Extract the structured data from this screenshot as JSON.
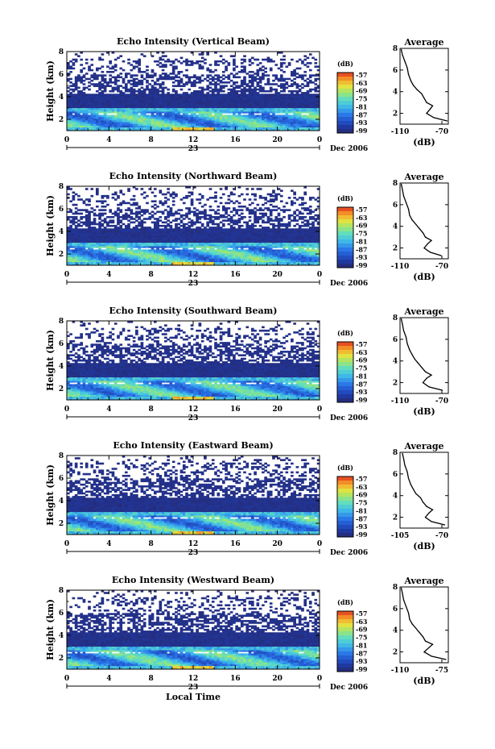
{
  "chart_data": [
    {
      "type": "heatmap",
      "title": "Echo Intensity (Vertical Beam)",
      "ylabel": "Height (km)",
      "x_ticks": [
        "0",
        "4",
        "8",
        "12",
        "16",
        "20",
        "0"
      ],
      "y_ticks": [
        "2",
        "4",
        "6",
        "8"
      ],
      "xlim": [
        0,
        24
      ],
      "ylim": [
        1,
        8
      ],
      "date_label": "23",
      "date_suffix": "Dec 2006",
      "colorbar": {
        "label": "(dB)",
        "ticks": [
          "-57",
          "-63",
          "-69",
          "-75",
          "-81",
          "-87",
          "-93",
          "-99"
        ]
      },
      "profile": {
        "title": "Average",
        "xlabel": "(dB)",
        "x_ticks": [
          "-110",
          "-70"
        ],
        "xlim": [
          -110,
          -70
        ],
        "y_ticks": [
          "2",
          "4",
          "6",
          "8"
        ],
        "ylim": [
          1,
          8
        ],
        "heights": [
          1.3,
          1.6,
          2.0,
          2.4,
          2.7,
          3.0,
          3.4,
          3.8,
          4.2,
          4.6,
          5.0,
          5.6,
          6.2,
          6.8,
          7.4,
          7.9
        ],
        "values": [
          -71,
          -82,
          -88,
          -85,
          -83,
          -88,
          -90,
          -92,
          -96,
          -99,
          -101,
          -103,
          -104,
          -106,
          -108,
          -109
        ]
      }
    },
    {
      "type": "heatmap",
      "title": "Echo Intensity (Northward Beam)",
      "ylabel": "Height (km)",
      "x_ticks": [
        "0",
        "4",
        "8",
        "12",
        "16",
        "20",
        "0"
      ],
      "y_ticks": [
        "2",
        "4",
        "6",
        "8"
      ],
      "xlim": [
        0,
        24
      ],
      "ylim": [
        1,
        8
      ],
      "date_label": "23",
      "date_suffix": "Dec 2006",
      "colorbar": {
        "label": "(dB)",
        "ticks": [
          "-57",
          "-63",
          "-69",
          "-75",
          "-81",
          "-87",
          "-93",
          "-99"
        ]
      },
      "profile": {
        "title": "Average",
        "xlabel": "(dB)",
        "x_ticks": [
          "-110",
          "-70"
        ],
        "xlim": [
          -110,
          -70
        ],
        "y_ticks": [
          "2",
          "4",
          "6",
          "8"
        ],
        "ylim": [
          1,
          8
        ],
        "heights": [
          1.3,
          1.6,
          2.0,
          2.4,
          2.7,
          3.0,
          3.4,
          3.8,
          4.2,
          4.6,
          5.0,
          5.6,
          6.2,
          6.8,
          7.4,
          7.9
        ],
        "values": [
          -76,
          -85,
          -90,
          -87,
          -84,
          -89,
          -91,
          -94,
          -97,
          -100,
          -102,
          -103,
          -105,
          -107,
          -108,
          -109
        ]
      }
    },
    {
      "type": "heatmap",
      "title": "Echo Intensity (Southward Beam)",
      "ylabel": "Height (km)",
      "x_ticks": [
        "0",
        "4",
        "8",
        "12",
        "16",
        "20",
        "0"
      ],
      "y_ticks": [
        "2",
        "4",
        "6",
        "8"
      ],
      "xlim": [
        0,
        24
      ],
      "ylim": [
        1,
        8
      ],
      "date_label": "23",
      "date_suffix": "Dec 2006",
      "colorbar": {
        "label": "(dB)",
        "ticks": [
          "-57",
          "-63",
          "-69",
          "-75",
          "-81",
          "-87",
          "-93",
          "-99"
        ]
      },
      "profile": {
        "title": "Average",
        "xlabel": "(dB)",
        "x_ticks": [
          "-110",
          "-70"
        ],
        "xlim": [
          -110,
          -70
        ],
        "y_ticks": [
          "2",
          "4",
          "6",
          "8"
        ],
        "ylim": [
          1,
          8
        ],
        "heights": [
          1.3,
          1.6,
          2.0,
          2.4,
          2.7,
          3.0,
          3.4,
          3.8,
          4.2,
          4.6,
          5.0,
          5.6,
          6.2,
          6.8,
          7.4,
          7.9
        ],
        "values": [
          -75,
          -86,
          -91,
          -88,
          -84,
          -89,
          -92,
          -95,
          -98,
          -100,
          -102,
          -104,
          -105,
          -107,
          -108,
          -109
        ]
      }
    },
    {
      "type": "heatmap",
      "title": "Echo Intensity (Eastward Beam)",
      "ylabel": "Height (km)",
      "x_ticks": [
        "0",
        "4",
        "8",
        "12",
        "16",
        "20",
        "0"
      ],
      "y_ticks": [
        "2",
        "4",
        "6",
        "8"
      ],
      "xlim": [
        0,
        24
      ],
      "ylim": [
        1,
        8
      ],
      "date_label": "23",
      "date_suffix": "Dec 2006",
      "colorbar": {
        "label": "(dB)",
        "ticks": [
          "-57",
          "-63",
          "-69",
          "-75",
          "-81",
          "-87",
          "-93",
          "-99"
        ]
      },
      "profile": {
        "title": "Average",
        "xlabel": "(dB)",
        "x_ticks": [
          "-105",
          "-70"
        ],
        "xlim": [
          -110,
          -70
        ],
        "y_ticks": [
          "2",
          "4",
          "6",
          "8"
        ],
        "ylim": [
          1,
          8
        ],
        "heights": [
          1.3,
          1.6,
          2.0,
          2.4,
          2.7,
          3.0,
          3.4,
          3.8,
          4.2,
          4.6,
          5.0,
          5.6,
          6.2,
          6.8,
          7.4,
          7.9
        ],
        "values": [
          -73,
          -84,
          -89,
          -86,
          -83,
          -88,
          -91,
          -93,
          -97,
          -99,
          -101,
          -103,
          -104,
          -106,
          -107,
          -108
        ]
      }
    },
    {
      "type": "heatmap",
      "title": "Echo Intensity (Westward Beam)",
      "ylabel": "Height (km)",
      "xlabel": "Local Time",
      "x_ticks": [
        "0",
        "4",
        "8",
        "12",
        "16",
        "20",
        "0"
      ],
      "y_ticks": [
        "2",
        "4",
        "6",
        "8"
      ],
      "xlim": [
        0,
        24
      ],
      "ylim": [
        1,
        8
      ],
      "date_label": "23",
      "date_suffix": "Dec 2006",
      "colorbar": {
        "label": "(dB)",
        "ticks": [
          "-57",
          "-63",
          "-69",
          "-75",
          "-81",
          "-87",
          "-93",
          "-99"
        ]
      },
      "profile": {
        "title": "Average",
        "xlabel": "(dB)",
        "x_ticks": [
          "-110",
          "-75"
        ],
        "xlim": [
          -110,
          -70
        ],
        "y_ticks": [
          "2",
          "4",
          "6",
          "8"
        ],
        "ylim": [
          1,
          8
        ],
        "heights": [
          1.3,
          1.6,
          2.0,
          2.4,
          2.7,
          3.0,
          3.4,
          3.8,
          4.2,
          4.6,
          5.0,
          5.6,
          6.2,
          6.8,
          7.4,
          7.9
        ],
        "values": [
          -72,
          -84,
          -90,
          -86,
          -83,
          -89,
          -91,
          -94,
          -97,
          -100,
          -102,
          -103,
          -105,
          -107,
          -108,
          -109
        ]
      }
    }
  ]
}
